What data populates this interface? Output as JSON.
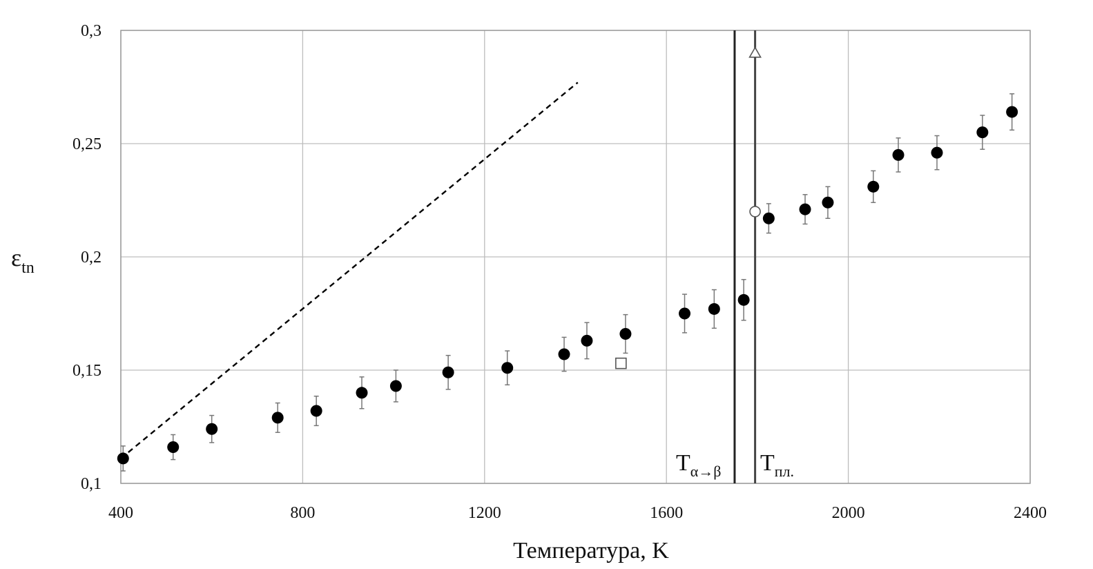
{
  "chart_data": {
    "type": "scatter",
    "xlabel": "Температура, K",
    "ylabel": "ε",
    "ylabel_sub": "tn",
    "xlim": [
      400,
      2400
    ],
    "ylim": [
      0.1,
      0.3
    ],
    "x_ticks": [
      400,
      800,
      1200,
      1600,
      2000,
      2400
    ],
    "x_tick_labels": [
      "400",
      "800",
      "1200",
      "1600",
      "2000",
      "2400"
    ],
    "y_ticks": [
      0.1,
      0.15,
      0.2,
      0.25,
      0.3
    ],
    "y_tick_labels": [
      "0,1",
      "0,15",
      "0,2",
      "0,25",
      "0,3"
    ],
    "grid": true,
    "series": [
      {
        "marker": "filled-circle",
        "color": "#000000",
        "with_error_bars": true,
        "x": [
          405,
          515,
          600,
          745,
          830,
          930,
          1005,
          1120,
          1250,
          1375,
          1425,
          1510,
          1640,
          1705,
          1770,
          1825,
          1905,
          1955,
          2055,
          2110,
          2195,
          2295,
          2360
        ],
        "y": [
          0.111,
          0.116,
          0.124,
          0.129,
          0.132,
          0.14,
          0.143,
          0.149,
          0.151,
          0.157,
          0.163,
          0.166,
          0.175,
          0.177,
          0.181,
          0.217,
          0.221,
          0.224,
          0.231,
          0.245,
          0.246,
          0.255,
          0.264
        ],
        "err": [
          0.0055,
          0.0055,
          0.006,
          0.0065,
          0.0065,
          0.007,
          0.007,
          0.0075,
          0.0075,
          0.0075,
          0.008,
          0.0085,
          0.0085,
          0.0085,
          0.009,
          0.0065,
          0.0065,
          0.007,
          0.007,
          0.0075,
          0.0075,
          0.0075,
          0.008
        ]
      },
      {
        "marker": "open-square",
        "color": "#000000",
        "x": [
          1500
        ],
        "y": [
          0.153
        ]
      },
      {
        "marker": "open-circle",
        "color": "#000000",
        "x": [
          1795
        ],
        "y": [
          0.22
        ]
      },
      {
        "marker": "open-triangle",
        "color": "#000000",
        "x": [
          1795
        ],
        "y": [
          0.29
        ]
      },
      {
        "type": "line",
        "style": "dashed",
        "color": "#000000",
        "x": [
          400,
          1405
        ],
        "y": [
          0.111,
          0.277
        ]
      }
    ],
    "vertical_lines": [
      {
        "x": 1750,
        "label_main": "T",
        "label_sub": "α→β"
      },
      {
        "x": 1795,
        "label_main": "T",
        "label_sub": "пл."
      }
    ]
  }
}
